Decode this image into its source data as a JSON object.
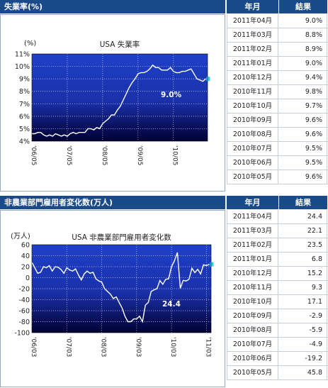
{
  "panel1": {
    "title": "失業率(%)",
    "col_month": "年月",
    "col_value": "結果",
    "rows": [
      {
        "month": "2011年04月",
        "value": "9.0%"
      },
      {
        "month": "2011年03月",
        "value": "8.8%"
      },
      {
        "month": "2011年02月",
        "value": "8.9%"
      },
      {
        "month": "2011年01月",
        "value": "9.0%"
      },
      {
        "month": "2010年12月",
        "value": "9.4%"
      },
      {
        "month": "2010年11月",
        "value": "9.8%"
      },
      {
        "month": "2010年10月",
        "value": "9.7%"
      },
      {
        "month": "2010年09月",
        "value": "9.6%"
      },
      {
        "month": "2010年08月",
        "value": "9.6%"
      },
      {
        "month": "2010年07月",
        "value": "9.5%"
      },
      {
        "month": "2010年06月",
        "value": "9.5%"
      },
      {
        "month": "2010年05月",
        "value": "9.6%"
      }
    ]
  },
  "panel2": {
    "title": "非農業部門雇用者変化数(万人)",
    "col_month": "年月",
    "col_value": "結果",
    "rows": [
      {
        "month": "2011年04月",
        "value": "24.4"
      },
      {
        "month": "2011年03月",
        "value": "22.1"
      },
      {
        "month": "2011年02月",
        "value": "23.5"
      },
      {
        "month": "2011年01月",
        "value": "6.8"
      },
      {
        "month": "2010年12月",
        "value": "15.2"
      },
      {
        "month": "2010年11月",
        "value": "9.3"
      },
      {
        "month": "2010年10月",
        "value": "17.1"
      },
      {
        "month": "2010年09月",
        "value": "-2.9"
      },
      {
        "month": "2010年08月",
        "value": "-5.9"
      },
      {
        "month": "2010年07月",
        "value": "-4.9"
      },
      {
        "month": "2010年06月",
        "value": "-19.2"
      },
      {
        "month": "2010年05月",
        "value": "45.8"
      }
    ]
  },
  "chart_data": [
    {
      "type": "line",
      "title": "USA 失業率",
      "ylabel": "(%)",
      "xlabel": "",
      "ylim": [
        4,
        11
      ],
      "yticks": [
        "4%",
        "5%",
        "6%",
        "7%",
        "8%",
        "9%",
        "10%",
        "11%"
      ],
      "xticks": [
        "'06/05",
        "'07/05",
        "'08/05",
        "'09/05",
        "'10/05"
      ],
      "annotation": "9.0%",
      "colors": {
        "bg_top": "#1e40c8",
        "bg_bottom": "#000033",
        "line": "#ffffff",
        "marker": "#33ccee"
      },
      "x": [
        "2006-05",
        "2006-06",
        "2006-07",
        "2006-08",
        "2006-09",
        "2006-10",
        "2006-11",
        "2006-12",
        "2007-01",
        "2007-02",
        "2007-03",
        "2007-04",
        "2007-05",
        "2007-06",
        "2007-07",
        "2007-08",
        "2007-09",
        "2007-10",
        "2007-11",
        "2007-12",
        "2008-01",
        "2008-02",
        "2008-03",
        "2008-04",
        "2008-05",
        "2008-06",
        "2008-07",
        "2008-08",
        "2008-09",
        "2008-10",
        "2008-11",
        "2008-12",
        "2009-01",
        "2009-02",
        "2009-03",
        "2009-04",
        "2009-05",
        "2009-06",
        "2009-07",
        "2009-08",
        "2009-09",
        "2009-10",
        "2009-11",
        "2009-12",
        "2010-01",
        "2010-02",
        "2010-03",
        "2010-04",
        "2010-05",
        "2010-06",
        "2010-07",
        "2010-08",
        "2010-09",
        "2010-10",
        "2010-11",
        "2010-12",
        "2011-01",
        "2011-02",
        "2011-03",
        "2011-04"
      ],
      "values": [
        4.6,
        4.6,
        4.7,
        4.7,
        4.5,
        4.4,
        4.5,
        4.4,
        4.6,
        4.5,
        4.4,
        4.5,
        4.4,
        4.6,
        4.7,
        4.6,
        4.7,
        4.7,
        4.7,
        5.0,
        5.0,
        4.9,
        5.1,
        5.0,
        5.4,
        5.6,
        5.8,
        6.1,
        6.1,
        6.5,
        6.8,
        7.3,
        7.8,
        8.3,
        8.7,
        9.0,
        9.4,
        9.5,
        9.5,
        9.6,
        9.8,
        10.1,
        9.9,
        9.9,
        9.7,
        9.7,
        9.7,
        9.9,
        9.6,
        9.5,
        9.5,
        9.6,
        9.6,
        9.7,
        9.8,
        9.4,
        9.0,
        8.9,
        8.8,
        9.0
      ]
    },
    {
      "type": "line",
      "title": "USA 非農業部門雇用者変化数",
      "ylabel": "(万人)",
      "xlabel": "",
      "ylim": [
        -100,
        60
      ],
      "yticks": [
        "-100",
        "-80",
        "-60",
        "-40",
        "-20",
        "0",
        "20",
        "40",
        "60"
      ],
      "xticks": [
        "'06/03",
        "'07/03",
        "'08/03",
        "'09/03",
        "'10/03",
        "'11/03"
      ],
      "annotation": "24.4",
      "colors": {
        "bg_top": "#1e40c8",
        "bg_bottom": "#000033",
        "line": "#ffffff",
        "zero_line": "#e8e020",
        "marker": "#33ccee"
      },
      "x": [
        "2006-03",
        "2006-04",
        "2006-05",
        "2006-06",
        "2006-07",
        "2006-08",
        "2006-09",
        "2006-10",
        "2006-11",
        "2006-12",
        "2007-01",
        "2007-02",
        "2007-03",
        "2007-04",
        "2007-05",
        "2007-06",
        "2007-07",
        "2007-08",
        "2007-09",
        "2007-10",
        "2007-11",
        "2007-12",
        "2008-01",
        "2008-02",
        "2008-03",
        "2008-04",
        "2008-05",
        "2008-06",
        "2008-07",
        "2008-08",
        "2008-09",
        "2008-10",
        "2008-11",
        "2008-12",
        "2009-01",
        "2009-02",
        "2009-03",
        "2009-04",
        "2009-05",
        "2009-06",
        "2009-07",
        "2009-08",
        "2009-09",
        "2009-10",
        "2009-11",
        "2009-12",
        "2010-01",
        "2010-02",
        "2010-03",
        "2010-04",
        "2010-05",
        "2010-06",
        "2010-07",
        "2010-08",
        "2010-09",
        "2010-10",
        "2010-11",
        "2010-12",
        "2011-01",
        "2011-02",
        "2011-03",
        "2011-04"
      ],
      "values": [
        28,
        18,
        8,
        10,
        20,
        18,
        22,
        12,
        20,
        19,
        15,
        8,
        18,
        14,
        12,
        16,
        5,
        -4,
        7,
        12,
        8,
        10,
        -2,
        -6,
        -8,
        -20,
        -25,
        -30,
        -38,
        -35,
        -45,
        -55,
        -70,
        -80,
        -80,
        -75,
        -75,
        -70,
        -80,
        -50,
        -45,
        -25,
        -22,
        -20,
        -5,
        -12,
        -3,
        -2,
        20,
        31,
        46,
        -19.2,
        -4.9,
        -5.9,
        -2.9,
        17.1,
        9.3,
        15.2,
        6.8,
        23.5,
        22.1,
        24.4
      ]
    }
  ]
}
